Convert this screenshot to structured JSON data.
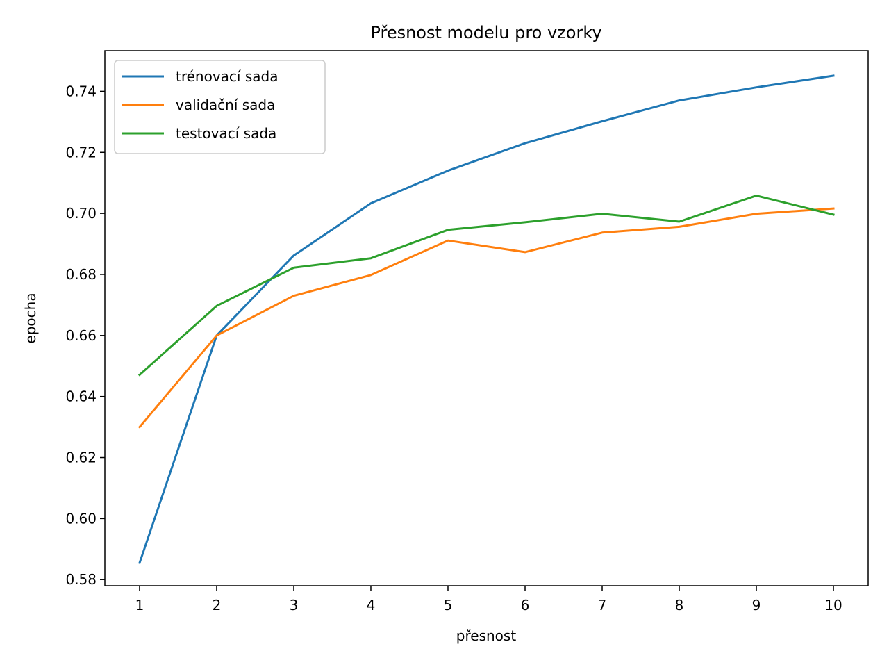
{
  "chart_data": {
    "type": "line",
    "title": "Přesnost modelu pro vzorky",
    "xlabel": "přesnost",
    "ylabel": "epocha",
    "x": [
      1,
      2,
      3,
      4,
      5,
      6,
      7,
      8,
      9,
      10
    ],
    "x_ticks": [
      "1",
      "2",
      "3",
      "4",
      "5",
      "6",
      "7",
      "8",
      "9",
      "10"
    ],
    "y_ticks": [
      "0.58",
      "0.60",
      "0.62",
      "0.64",
      "0.66",
      "0.68",
      "0.70",
      "0.72",
      "0.74"
    ],
    "xlim": [
      0.55,
      10.45
    ],
    "ylim": [
      0.578,
      0.7533
    ],
    "grid": false,
    "legend_position": "upper-left",
    "series": [
      {
        "name": "trénovací sada",
        "color": "#1f77b4",
        "values": [
          0.5855,
          0.66,
          0.6862,
          0.7033,
          0.714,
          0.723,
          0.7302,
          0.737,
          0.7413,
          0.7451
        ]
      },
      {
        "name": "validační sada",
        "color": "#ff7f0e",
        "values": [
          0.63,
          0.66,
          0.673,
          0.6798,
          0.6911,
          0.6873,
          0.6937,
          0.6956,
          0.6999,
          0.7016
        ]
      },
      {
        "name": "testovací sada",
        "color": "#2ca02c",
        "values": [
          0.6471,
          0.6697,
          0.6822,
          0.6853,
          0.6946,
          0.6971,
          0.6999,
          0.6973,
          0.7058,
          0.6996
        ]
      }
    ]
  }
}
